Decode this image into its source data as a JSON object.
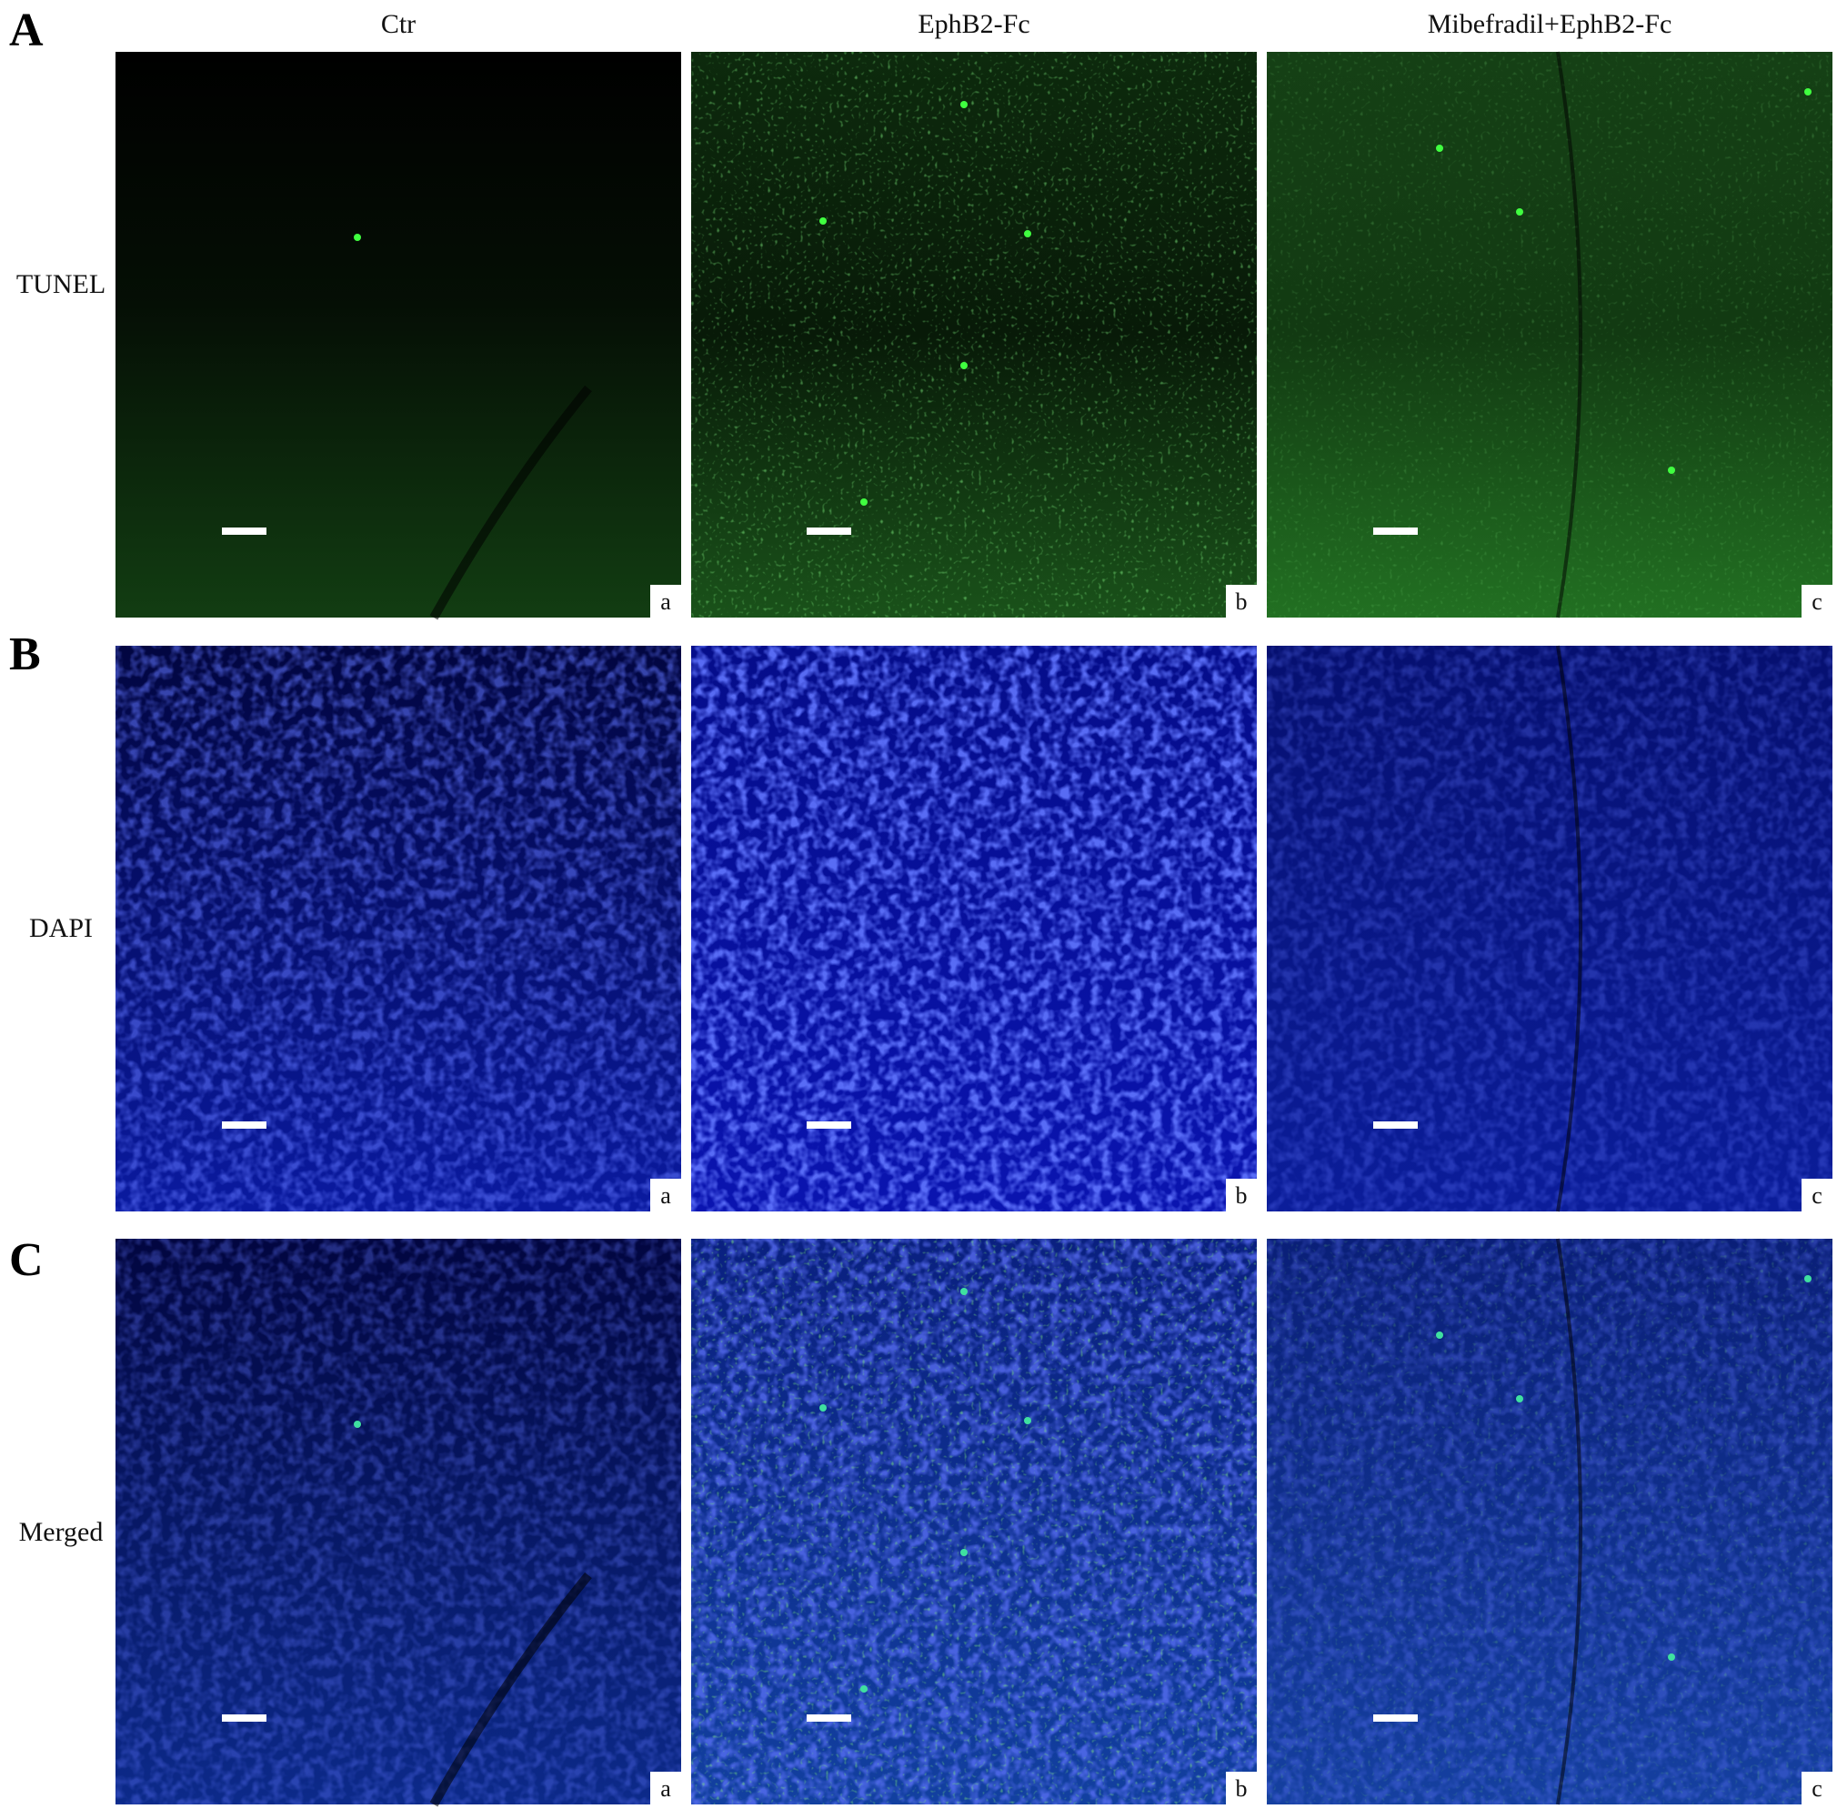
{
  "figure": {
    "columns": [
      "Ctr",
      "EphB2-Fc",
      "Mibefradil+EphB2-Fc"
    ],
    "rows": [
      {
        "panel": "A",
        "label": "TUNEL"
      },
      {
        "panel": "B",
        "label": "DAPI"
      },
      {
        "panel": "C",
        "label": "Merged"
      }
    ],
    "sublabels": [
      "a",
      "b",
      "c"
    ]
  }
}
